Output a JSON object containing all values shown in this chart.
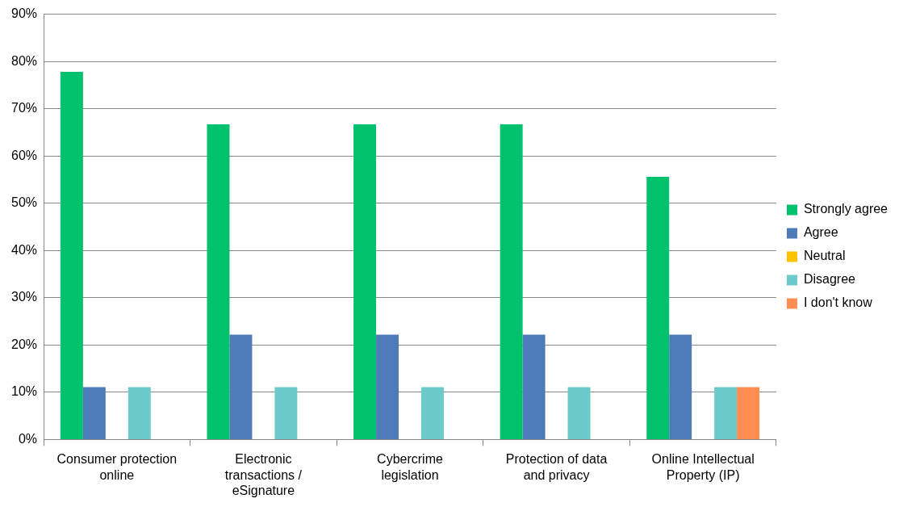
{
  "chart_data": {
    "type": "bar",
    "categories": [
      "Consumer protection online",
      "Electronic transactions / eSignature",
      "Cybercrime legislation",
      "Protection of data and privacy",
      "Online Intellectual Property (IP)"
    ],
    "series": [
      {
        "name": "Strongly agree",
        "color": "#00c16e",
        "values": [
          77.8,
          66.7,
          66.7,
          66.7,
          55.6
        ]
      },
      {
        "name": "Agree",
        "color": "#4f7cb8",
        "values": [
          11.1,
          22.2,
          22.2,
          22.2,
          22.2
        ]
      },
      {
        "name": "Neutral",
        "color": "#ffc000",
        "values": [
          0,
          0,
          0,
          0,
          0
        ]
      },
      {
        "name": "Disagree",
        "color": "#6dcaca",
        "values": [
          11.1,
          11.1,
          11.1,
          11.1,
          11.1
        ]
      },
      {
        "name": "I don't know",
        "color": "#ff8c50",
        "values": [
          0,
          0,
          0,
          0,
          11.1
        ]
      }
    ],
    "ylim": [
      0,
      90
    ],
    "yticks": [
      {
        "value": 0,
        "label": "0%"
      },
      {
        "value": 10,
        "label": "10%"
      },
      {
        "value": 20,
        "label": "20%"
      },
      {
        "value": 30,
        "label": "30%"
      },
      {
        "value": 40,
        "label": "40%"
      },
      {
        "value": 50,
        "label": "50%"
      },
      {
        "value": 60,
        "label": "60%"
      },
      {
        "value": 70,
        "label": "70%"
      },
      {
        "value": 80,
        "label": "80%"
      },
      {
        "value": 90,
        "label": "90%"
      }
    ],
    "grid": "y",
    "legend": "right"
  }
}
